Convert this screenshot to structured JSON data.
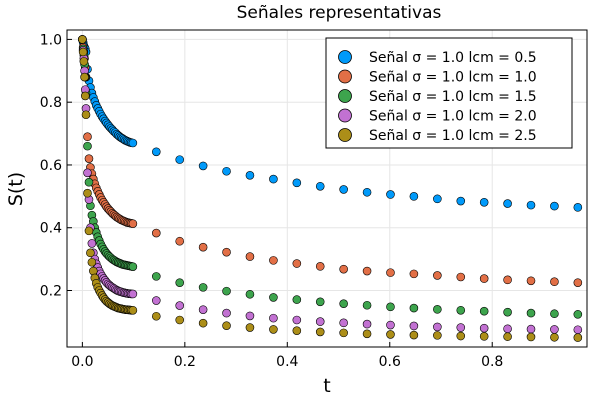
{
  "chart_data": {
    "type": "scatter",
    "title": "Señales representativas",
    "xlabel": "t",
    "ylabel": "S(t)",
    "xlim": [
      -0.03,
      0.985
    ],
    "ylim": [
      0.02,
      1.03
    ],
    "xticks": [
      0.0,
      0.2,
      0.4,
      0.6,
      0.8
    ],
    "xtick_labels": [
      "0.0",
      "0.2",
      "0.4",
      "0.6",
      "0.8"
    ],
    "yticks": [
      0.2,
      0.4,
      0.6,
      0.8,
      1.0
    ],
    "ytick_labels": [
      "0.2",
      "0.4",
      "0.6",
      "0.8",
      "1.0"
    ],
    "grid": true,
    "legend_position": "top-right",
    "x": [
      0.0,
      0.0015,
      0.0029,
      0.0043,
      0.0057,
      0.0071,
      0.01,
      0.0129,
      0.0157,
      0.0186,
      0.0214,
      0.0243,
      0.0271,
      0.03,
      0.0329,
      0.0357,
      0.0386,
      0.0414,
      0.0443,
      0.0471,
      0.05,
      0.0529,
      0.0557,
      0.0586,
      0.0614,
      0.0643,
      0.0671,
      0.07,
      0.0729,
      0.0757,
      0.0786,
      0.0814,
      0.0843,
      0.0871,
      0.09,
      0.0929,
      0.0957,
      0.0986,
      0.1443,
      0.19,
      0.2357,
      0.2814,
      0.3271,
      0.3729,
      0.4186,
      0.4643,
      0.51,
      0.5557,
      0.6014,
      0.6471,
      0.6929,
      0.7386,
      0.7843,
      0.83,
      0.8757,
      0.9214,
      0.9671
    ],
    "series": [
      {
        "name": "Señal σ = 1.0 lcm = 0.5",
        "color": "#009AFA",
        "values": [
          1.0,
          0.99,
          0.98,
          0.975,
          0.97,
          0.96,
          0.905,
          0.868,
          0.847,
          0.829,
          0.815,
          0.802,
          0.79,
          0.78,
          0.771,
          0.762,
          0.754,
          0.747,
          0.74,
          0.734,
          0.728,
          0.722,
          0.717,
          0.712,
          0.707,
          0.703,
          0.698,
          0.694,
          0.69,
          0.687,
          0.684,
          0.681,
          0.678,
          0.676,
          0.674,
          0.672,
          0.671,
          0.67,
          0.642,
          0.617,
          0.597,
          0.58,
          0.567,
          0.555,
          0.543,
          0.532,
          0.522,
          0.513,
          0.506,
          0.5,
          0.492,
          0.485,
          0.481,
          0.477,
          0.472,
          0.469,
          0.465
        ]
      },
      {
        "name": "Señal σ = 1.0 lcm = 1.0",
        "color": "#E26F46",
        "values": [
          1.0,
          0.975,
          0.96,
          0.94,
          0.91,
          0.88,
          0.69,
          0.62,
          0.592,
          0.572,
          0.555,
          0.54,
          0.527,
          0.516,
          0.506,
          0.496,
          0.488,
          0.481,
          0.474,
          0.467,
          0.461,
          0.456,
          0.451,
          0.446,
          0.442,
          0.438,
          0.434,
          0.431,
          0.428,
          0.425,
          0.423,
          0.421,
          0.419,
          0.417,
          0.416,
          0.415,
          0.414,
          0.413,
          0.383,
          0.357,
          0.338,
          0.322,
          0.308,
          0.296,
          0.286,
          0.277,
          0.268,
          0.262,
          0.257,
          0.253,
          0.248,
          0.243,
          0.238,
          0.234,
          0.231,
          0.228,
          0.225
        ]
      },
      {
        "name": "Señal σ = 1.0 lcm = 1.5",
        "color": "#3DA44D",
        "values": [
          1.0,
          0.97,
          0.95,
          0.92,
          0.88,
          0.83,
          0.66,
          0.545,
          0.47,
          0.44,
          0.42,
          0.4,
          0.385,
          0.371,
          0.359,
          0.348,
          0.339,
          0.331,
          0.324,
          0.318,
          0.313,
          0.308,
          0.304,
          0.3,
          0.297,
          0.294,
          0.291,
          0.289,
          0.287,
          0.285,
          0.283,
          0.282,
          0.281,
          0.28,
          0.279,
          0.278,
          0.277,
          0.276,
          0.245,
          0.225,
          0.21,
          0.198,
          0.188,
          0.178,
          0.171,
          0.164,
          0.158,
          0.153,
          0.148,
          0.144,
          0.14,
          0.137,
          0.134,
          0.131,
          0.128,
          0.126,
          0.124
        ]
      },
      {
        "name": "Señal σ = 1.0 lcm = 2.0",
        "color": "#C271D2",
        "values": [
          1.0,
          0.965,
          0.94,
          0.9,
          0.84,
          0.78,
          0.575,
          0.49,
          0.4,
          0.35,
          0.32,
          0.3,
          0.285,
          0.273,
          0.262,
          0.253,
          0.245,
          0.238,
          0.232,
          0.226,
          0.221,
          0.217,
          0.213,
          0.21,
          0.207,
          0.204,
          0.201,
          0.199,
          0.197,
          0.196,
          0.194,
          0.193,
          0.192,
          0.191,
          0.19,
          0.19,
          0.189,
          0.189,
          0.168,
          0.152,
          0.139,
          0.128,
          0.119,
          0.112,
          0.106,
          0.101,
          0.097,
          0.093,
          0.09,
          0.087,
          0.084,
          0.082,
          0.08,
          0.078,
          0.077,
          0.076,
          0.075
        ]
      },
      {
        "name": "Señal σ = 1.0 lcm = 2.5",
        "color": "#AC8E18",
        "values": [
          1.0,
          0.96,
          0.93,
          0.88,
          0.82,
          0.76,
          0.51,
          0.39,
          0.32,
          0.29,
          0.262,
          0.24,
          0.223,
          0.21,
          0.2,
          0.192,
          0.184,
          0.177,
          0.171,
          0.166,
          0.162,
          0.158,
          0.155,
          0.152,
          0.15,
          0.148,
          0.146,
          0.144,
          0.143,
          0.142,
          0.141,
          0.14,
          0.139,
          0.139,
          0.138,
          0.138,
          0.137,
          0.137,
          0.118,
          0.106,
          0.096,
          0.088,
          0.082,
          0.076,
          0.072,
          0.068,
          0.065,
          0.062,
          0.06,
          0.058,
          0.057,
          0.055,
          0.054,
          0.053,
          0.052,
          0.051,
          0.05
        ]
      }
    ]
  }
}
